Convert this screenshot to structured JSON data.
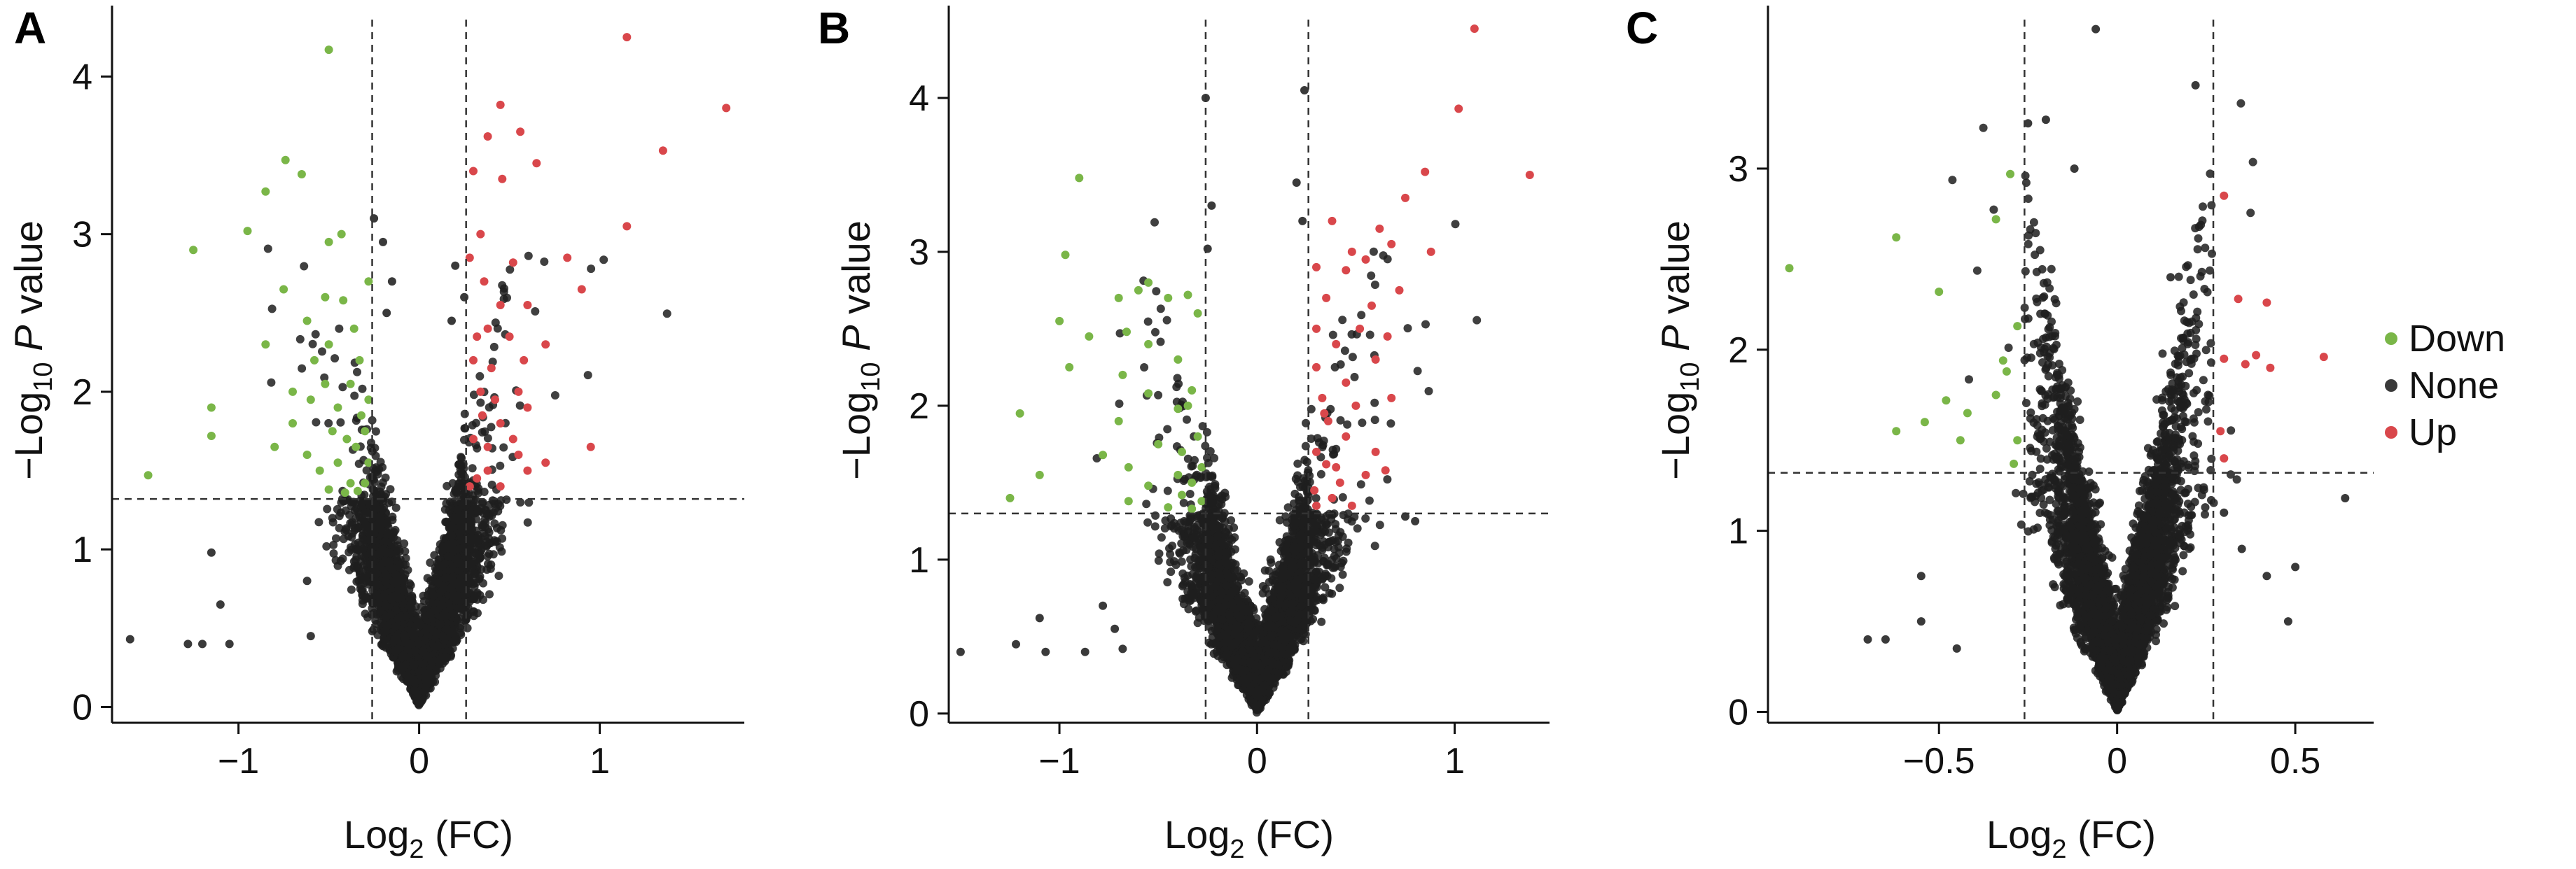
{
  "legend": {
    "items": [
      {
        "label": "Down",
        "color": "#7ab648"
      },
      {
        "label": "None",
        "color": "#3a3a3a"
      },
      {
        "label": "Up",
        "color": "#d9474b"
      }
    ]
  },
  "chart_data": [
    {
      "type": "scatter",
      "panel": "A",
      "xlabel": "Log2 (FC)",
      "ylabel": "−Log10 P value",
      "xlim": [
        -1.7,
        1.8
      ],
      "ylim": [
        -0.1,
        4.45
      ],
      "xticks": [
        -1,
        0,
        1
      ],
      "yticks": [
        0,
        1,
        2,
        3,
        4
      ],
      "thresholds": {
        "x": [
          -0.26,
          0.26
        ],
        "y": 1.32
      },
      "point_radius_units": 0.012,
      "background": {
        "count": 4500,
        "spread_x": 0.2,
        "slope": 5.0,
        "max_y": 3.0,
        "xlim_clip": 1.7
      },
      "series": [
        {
          "name": "Down",
          "color": "#7ab648",
          "points": [
            [
              -0.5,
              4.17
            ],
            [
              -0.74,
              3.47
            ],
            [
              -0.65,
              3.38
            ],
            [
              -0.85,
              3.27
            ],
            [
              -0.95,
              3.02
            ],
            [
              -0.43,
              3.0
            ],
            [
              -0.5,
              2.95
            ],
            [
              -1.25,
              2.9
            ],
            [
              -0.75,
              2.65
            ],
            [
              -0.52,
              2.6
            ],
            [
              -0.42,
              2.58
            ],
            [
              -0.62,
              2.45
            ],
            [
              -0.85,
              2.3
            ],
            [
              -0.5,
              2.3
            ],
            [
              -0.58,
              2.2
            ],
            [
              -0.52,
              2.05
            ],
            [
              -0.38,
              2.05
            ],
            [
              -0.7,
              2.0
            ],
            [
              -0.6,
              1.95
            ],
            [
              -1.15,
              1.9
            ],
            [
              -0.45,
              1.9
            ],
            [
              -0.32,
              1.85
            ],
            [
              -0.7,
              1.8
            ],
            [
              -0.48,
              1.75
            ],
            [
              -1.15,
              1.72
            ],
            [
              -0.8,
              1.65
            ],
            [
              -0.35,
              1.65
            ],
            [
              -0.62,
              1.6
            ],
            [
              -0.45,
              1.55
            ],
            [
              -0.55,
              1.5
            ],
            [
              -1.5,
              1.47
            ],
            [
              -0.38,
              1.42
            ],
            [
              -0.3,
              1.42
            ],
            [
              -0.5,
              1.38
            ],
            [
              -0.41,
              1.36
            ],
            [
              -0.34,
              1.37
            ],
            [
              -0.28,
              1.55
            ],
            [
              -0.3,
              1.75
            ],
            [
              -0.28,
              1.95
            ],
            [
              -0.33,
              2.2
            ],
            [
              -0.36,
              2.4
            ],
            [
              -0.28,
              2.7
            ],
            [
              -0.4,
              1.7
            ]
          ]
        },
        {
          "name": "Up",
          "color": "#d9474b",
          "points": [
            [
              1.15,
              4.25
            ],
            [
              1.7,
              3.8
            ],
            [
              0.45,
              3.82
            ],
            [
              0.38,
              3.62
            ],
            [
              0.56,
              3.65
            ],
            [
              1.35,
              3.53
            ],
            [
              0.65,
              3.45
            ],
            [
              0.3,
              3.4
            ],
            [
              0.46,
              3.35
            ],
            [
              1.15,
              3.05
            ],
            [
              0.34,
              3.0
            ],
            [
              0.82,
              2.85
            ],
            [
              0.28,
              2.85
            ],
            [
              0.52,
              2.82
            ],
            [
              0.9,
              2.65
            ],
            [
              0.36,
              2.7
            ],
            [
              0.45,
              2.55
            ],
            [
              0.6,
              2.55
            ],
            [
              0.38,
              2.4
            ],
            [
              0.32,
              2.35
            ],
            [
              0.5,
              2.35
            ],
            [
              0.7,
              2.3
            ],
            [
              0.58,
              2.2
            ],
            [
              0.3,
              2.2
            ],
            [
              0.4,
              2.15
            ],
            [
              0.55,
              2.0
            ],
            [
              0.34,
              2.0
            ],
            [
              0.6,
              1.9
            ],
            [
              0.35,
              1.85
            ],
            [
              0.45,
              1.8
            ],
            [
              0.52,
              1.7
            ],
            [
              0.3,
              1.7
            ],
            [
              0.38,
              1.65
            ],
            [
              0.95,
              1.65
            ],
            [
              0.7,
              1.55
            ],
            [
              0.6,
              1.5
            ],
            [
              0.38,
              1.5
            ],
            [
              0.32,
              1.45
            ],
            [
              0.45,
              1.4
            ],
            [
              0.28,
              1.4
            ],
            [
              0.55,
              1.6
            ],
            [
              0.42,
              1.95
            ]
          ]
        },
        {
          "name": "None",
          "color": "#3a3a3a",
          "points": [
            [
              -1.6,
              0.43
            ],
            [
              -1.2,
              0.4
            ],
            [
              -1.28,
              0.4
            ],
            [
              -1.05,
              0.4
            ],
            [
              -1.1,
              0.65
            ],
            [
              -1.15,
              0.98
            ],
            [
              -0.62,
              0.8
            ],
            [
              -0.6,
              0.45
            ],
            [
              -0.25,
              3.1
            ],
            [
              -0.2,
              2.95
            ],
            [
              -0.15,
              2.7
            ],
            [
              0.2,
              2.8
            ],
            [
              0.25,
              2.6
            ],
            [
              0.18,
              2.45
            ],
            [
              -0.18,
              2.5
            ]
          ]
        }
      ]
    },
    {
      "type": "scatter",
      "panel": "B",
      "xlabel": "Log2 (FC)",
      "ylabel": "−Log10 P value",
      "xlim": [
        -1.56,
        1.48
      ],
      "ylim": [
        -0.06,
        4.6
      ],
      "xticks": [
        -1,
        0,
        1
      ],
      "yticks": [
        0,
        1,
        2,
        3,
        4
      ],
      "thresholds": {
        "x": [
          -0.26,
          0.26
        ],
        "y": 1.3
      },
      "point_radius_units": 0.012,
      "background": {
        "count": 4500,
        "spread_x": 0.2,
        "slope": 5.0,
        "max_y": 3.2,
        "xlim_clip": 1.5
      },
      "series": [
        {
          "name": "Down",
          "color": "#7ab648",
          "points": [
            [
              -0.9,
              3.48
            ],
            [
              -0.97,
              2.98
            ],
            [
              -0.55,
              2.8
            ],
            [
              -0.6,
              2.75
            ],
            [
              -0.7,
              2.7
            ],
            [
              -1.0,
              2.55
            ],
            [
              -0.35,
              2.72
            ],
            [
              -0.45,
              2.7
            ],
            [
              -0.3,
              2.6
            ],
            [
              -0.66,
              2.48
            ],
            [
              -0.85,
              2.45
            ],
            [
              -0.55,
              2.4
            ],
            [
              -0.4,
              2.3
            ],
            [
              -0.95,
              2.25
            ],
            [
              -0.68,
              2.2
            ],
            [
              -0.33,
              2.1
            ],
            [
              -0.55,
              2.08
            ],
            [
              -0.4,
              1.98
            ],
            [
              -1.2,
              1.95
            ],
            [
              -0.7,
              1.9
            ],
            [
              -0.3,
              1.8
            ],
            [
              -0.5,
              1.75
            ],
            [
              -0.78,
              1.68
            ],
            [
              -0.65,
              1.6
            ],
            [
              -1.1,
              1.55
            ],
            [
              -0.4,
              1.55
            ],
            [
              -0.33,
              1.5
            ],
            [
              -0.55,
              1.48
            ],
            [
              -0.38,
              1.42
            ],
            [
              -1.25,
              1.4
            ],
            [
              -0.65,
              1.38
            ],
            [
              -0.28,
              1.38
            ],
            [
              -0.45,
              1.34
            ],
            [
              -0.33,
              1.33
            ],
            [
              -0.38,
              1.7
            ],
            [
              -0.28,
              1.6
            ],
            [
              -0.35,
              2.0
            ]
          ]
        },
        {
          "name": "Up",
          "color": "#d9474b",
          "points": [
            [
              1.1,
              4.45
            ],
            [
              1.02,
              3.93
            ],
            [
              1.38,
              3.5
            ],
            [
              0.85,
              3.52
            ],
            [
              0.75,
              3.35
            ],
            [
              0.38,
              3.2
            ],
            [
              0.62,
              3.15
            ],
            [
              0.68,
              3.05
            ],
            [
              0.88,
              3.0
            ],
            [
              0.48,
              3.0
            ],
            [
              0.55,
              2.95
            ],
            [
              0.3,
              2.9
            ],
            [
              0.45,
              2.88
            ],
            [
              0.72,
              2.75
            ],
            [
              0.35,
              2.7
            ],
            [
              0.58,
              2.65
            ],
            [
              0.52,
              2.5
            ],
            [
              0.3,
              2.5
            ],
            [
              0.66,
              2.45
            ],
            [
              0.4,
              2.4
            ],
            [
              0.6,
              2.3
            ],
            [
              0.3,
              2.25
            ],
            [
              0.45,
              2.15
            ],
            [
              0.68,
              2.05
            ],
            [
              0.33,
              2.05
            ],
            [
              0.5,
              2.0
            ],
            [
              0.36,
              1.9
            ],
            [
              0.45,
              1.8
            ],
            [
              0.6,
              1.7
            ],
            [
              0.3,
              1.7
            ],
            [
              0.35,
              1.62
            ],
            [
              0.65,
              1.58
            ],
            [
              0.55,
              1.55
            ],
            [
              0.42,
              1.5
            ],
            [
              0.29,
              1.45
            ],
            [
              0.38,
              1.4
            ],
            [
              0.48,
              1.35
            ],
            [
              0.3,
              1.35
            ],
            [
              0.4,
              1.6
            ],
            [
              0.34,
              1.95
            ]
          ]
        },
        {
          "name": "None",
          "color": "#3a3a3a",
          "points": [
            [
              -1.5,
              0.4
            ],
            [
              -1.22,
              0.45
            ],
            [
              -1.07,
              0.4
            ],
            [
              -1.1,
              0.62
            ],
            [
              -0.87,
              0.4
            ],
            [
              -0.78,
              0.7
            ],
            [
              -0.68,
              0.42
            ],
            [
              -0.72,
              0.55
            ],
            [
              -0.23,
              3.3
            ],
            [
              -0.25,
              3.02
            ],
            [
              0.2,
              3.45
            ],
            [
              0.23,
              3.2
            ],
            [
              0.24,
              4.05
            ],
            [
              -0.26,
              4.0
            ],
            [
              0.75,
              1.28
            ],
            [
              0.8,
              1.25
            ]
          ]
        }
      ]
    },
    {
      "type": "scatter",
      "panel": "C",
      "xlabel": "Log2 (FC)",
      "ylabel": "−Log10 P value",
      "xlim": [
        -0.98,
        0.72
      ],
      "ylim": [
        -0.06,
        3.9
      ],
      "xticks": [
        -0.5,
        0,
        0.5
      ],
      "xtick_labels": [
        "−0.5",
        "0",
        "0.5"
      ],
      "yticks": [
        0,
        1,
        2,
        3
      ],
      "thresholds": {
        "x": [
          -0.26,
          0.27
        ],
        "y": 1.32
      },
      "point_radius_units": 0.0105,
      "background": {
        "count": 4500,
        "spread_x": 0.09,
        "slope": 10.0,
        "max_y": 3.4,
        "xlim_clip": 0.72
      },
      "series": [
        {
          "name": "Down",
          "color": "#7ab648",
          "points": [
            [
              -0.92,
              2.45
            ],
            [
              -0.62,
              2.62
            ],
            [
              -0.5,
              2.32
            ],
            [
              -0.34,
              2.72
            ],
            [
              -0.3,
              2.97
            ],
            [
              -0.28,
              2.13
            ],
            [
              -0.32,
              1.94
            ],
            [
              -0.31,
              1.88
            ],
            [
              -0.42,
              1.65
            ],
            [
              -0.48,
              1.72
            ],
            [
              -0.34,
              1.75
            ],
            [
              -0.62,
              1.55
            ],
            [
              -0.28,
              1.5
            ],
            [
              -0.44,
              1.5
            ],
            [
              -0.29,
              1.37
            ],
            [
              -0.54,
              1.6
            ]
          ]
        },
        {
          "name": "Up",
          "color": "#d9474b",
          "points": [
            [
              0.3,
              2.85
            ],
            [
              0.3,
              1.95
            ],
            [
              0.34,
              2.28
            ],
            [
              0.39,
              1.97
            ],
            [
              0.42,
              2.26
            ],
            [
              0.43,
              1.9
            ],
            [
              0.58,
              1.96
            ],
            [
              0.3,
              1.4
            ],
            [
              0.29,
              1.55
            ],
            [
              0.36,
              1.92
            ]
          ]
        },
        {
          "name": "None",
          "color": "#3a3a3a",
          "points": [
            [
              -0.06,
              3.77
            ],
            [
              0.22,
              3.46
            ],
            [
              -0.2,
              3.27
            ],
            [
              -0.25,
              3.25
            ],
            [
              -0.12,
              3.0
            ],
            [
              0.3,
              1.1
            ],
            [
              0.35,
              0.9
            ],
            [
              0.42,
              0.75
            ],
            [
              0.64,
              1.18
            ],
            [
              0.5,
              0.8
            ],
            [
              0.48,
              0.5
            ],
            [
              -0.7,
              0.4
            ],
            [
              -0.65,
              0.4
            ],
            [
              -0.55,
              0.5
            ],
            [
              -0.45,
              0.35
            ],
            [
              -0.55,
              0.75
            ],
            [
              0.15,
              2.4
            ]
          ]
        }
      ]
    }
  ]
}
